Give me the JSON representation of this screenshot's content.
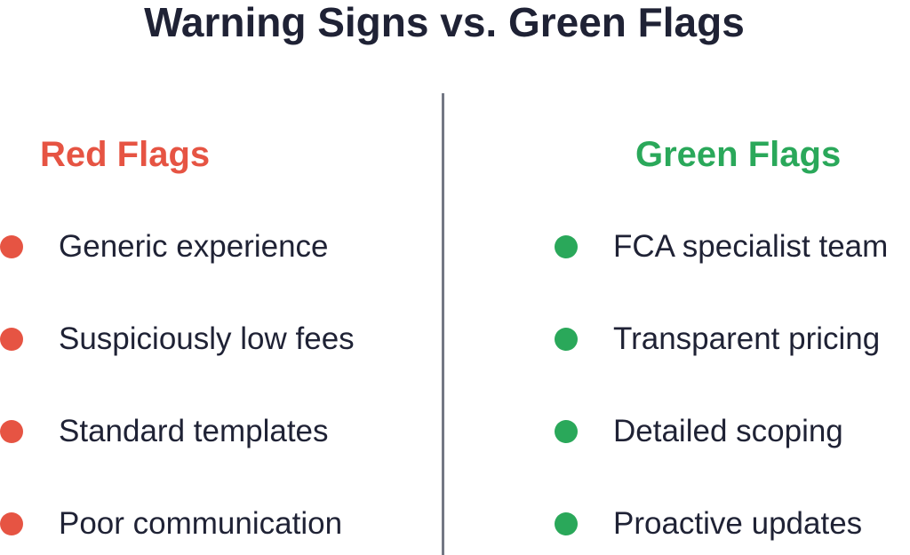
{
  "title": "Warning Signs vs. Green Flags",
  "red": {
    "heading": "Red Flags",
    "items": [
      "Generic experience",
      "Suspiciously low fees",
      "Standard templates",
      "Poor communication"
    ]
  },
  "green": {
    "heading": "Green Flags",
    "items": [
      "FCA specialist team",
      "Transparent pricing",
      "Detailed scoping",
      "Proactive updates"
    ]
  }
}
